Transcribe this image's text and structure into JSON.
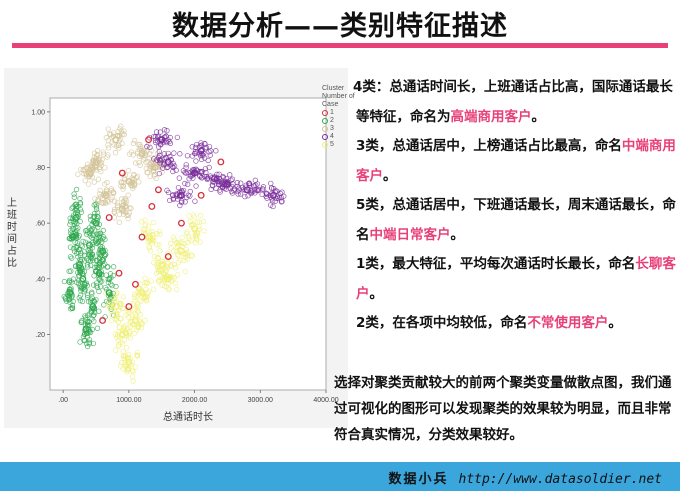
{
  "title": "数据分析——类别特征描述",
  "chart_data": {
    "type": "scatter",
    "xlabel": "总通话时长",
    "ylabel": "上班时间占比",
    "xlim": [
      -200,
      4000
    ],
    "ylim": [
      0.0,
      1.05
    ],
    "x_ticks": [
      ".00",
      "1000.00",
      "2000.00",
      "3000.00",
      "4000.00"
    ],
    "x_tick_values": [
      0,
      1000,
      2000,
      3000,
      4000
    ],
    "y_ticks": [
      ".20",
      ".40",
      ".60",
      ".80",
      "1.00"
    ],
    "y_tick_values": [
      0.2,
      0.4,
      0.6,
      0.8,
      1.0
    ],
    "legend_title": "Cluster Number of Case",
    "series": [
      {
        "name": "1",
        "color": "#d9303c",
        "values": [
          [
            850,
            0.42
          ],
          [
            1200,
            0.55
          ],
          [
            1450,
            0.72
          ],
          [
            1000,
            0.3
          ],
          [
            1800,
            0.6
          ],
          [
            600,
            0.25
          ],
          [
            1300,
            0.9
          ],
          [
            2100,
            0.7
          ],
          [
            900,
            0.78
          ],
          [
            1600,
            0.48
          ],
          [
            700,
            0.62
          ],
          [
            1100,
            0.38
          ],
          [
            2400,
            0.82
          ],
          [
            1350,
            0.66
          ]
        ]
      },
      {
        "name": "2",
        "color": "#2fa84f",
        "values": [
          [
            150,
            0.55
          ],
          [
            300,
            0.4
          ],
          [
            450,
            0.3
          ],
          [
            200,
            0.62
          ],
          [
            600,
            0.5
          ],
          [
            350,
            0.22
          ],
          [
            250,
            0.45
          ],
          [
            500,
            0.6
          ],
          [
            700,
            0.35
          ],
          [
            400,
            0.52
          ],
          [
            100,
            0.35
          ],
          [
            550,
            0.42
          ]
        ]
      },
      {
        "name": "3",
        "color": "#d4c49a",
        "values": [
          [
            500,
            0.82
          ],
          [
            800,
            0.9
          ],
          [
            1000,
            0.75
          ],
          [
            650,
            0.7
          ],
          [
            1200,
            0.85
          ],
          [
            900,
            0.65
          ],
          [
            400,
            0.78
          ],
          [
            1400,
            0.8
          ]
        ]
      },
      {
        "name": "4",
        "color": "#7b2f9c",
        "values": [
          [
            1600,
            0.82
          ],
          [
            2000,
            0.78
          ],
          [
            2300,
            0.76
          ],
          [
            1800,
            0.7
          ],
          [
            2500,
            0.74
          ],
          [
            1500,
            0.9
          ],
          [
            2800,
            0.72
          ],
          [
            3200,
            0.7
          ],
          [
            2100,
            0.86
          ]
        ]
      },
      {
        "name": "5",
        "color": "#f0f07a",
        "values": [
          [
            900,
            0.2
          ],
          [
            1200,
            0.35
          ],
          [
            1500,
            0.45
          ],
          [
            1000,
            0.1
          ],
          [
            1800,
            0.5
          ],
          [
            1300,
            0.55
          ],
          [
            800,
            0.3
          ],
          [
            2000,
            0.58
          ],
          [
            1100,
            0.25
          ],
          [
            1600,
            0.4
          ]
        ]
      }
    ]
  },
  "descriptions": [
    {
      "text": "4类：总通话时间长，上班通话占比高，国际通话最长等特征，命名为",
      "highlight": "高端商用客户",
      "tail": "。"
    },
    {
      "text": "3类，总通话居中，上榜通话占比最高，命名",
      "highlight": "中端商用客户",
      "tail": "。"
    },
    {
      "text": "5类，总通话居中，下班通话最长，周末通话最长，命名",
      "highlight": "中端日常客户",
      "tail": "。"
    },
    {
      "text": "1类，最大特征，平均每次通话时长最长，命名",
      "highlight": "长聊客户",
      "tail": "。"
    },
    {
      "text": "2类，在各项中均较低，命名",
      "highlight": "不常使用客户",
      "tail": "。"
    }
  ],
  "summary": "选择对聚类贡献较大的前两个聚类变量做散点图，我们通过可视化的图形可以发现聚类的效果较为明显，而且非常符合真实情况，分类效果较好。",
  "footer": {
    "brand": "数据小兵",
    "url": "http://www.datasoldier.net"
  }
}
